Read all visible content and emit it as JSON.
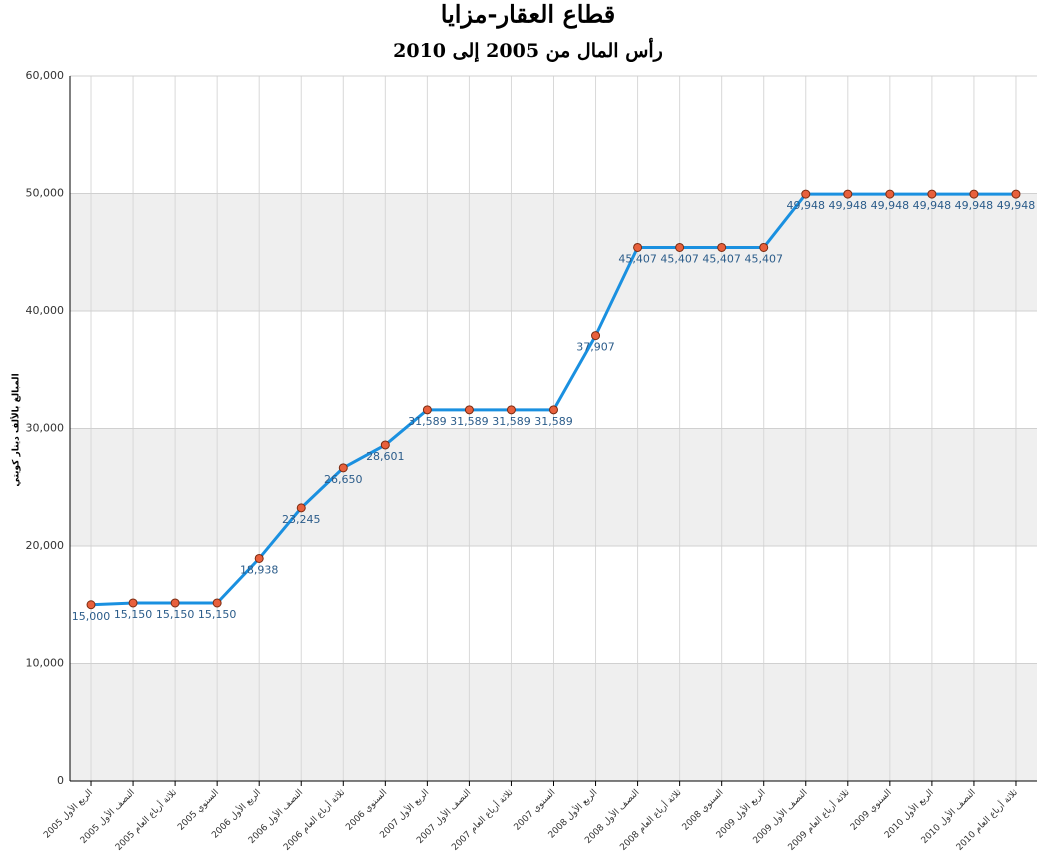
{
  "chart_data": {
    "type": "line",
    "title": "قطاع العقار-مزايا",
    "subtitle": "رأس المال من 2005 إلى 2010",
    "y_label": "المبالغ بالألف دينار كويتي",
    "categories": [
      "الربع الأول 2005",
      "النصف الأول 2005",
      "ثلاثة أرباع العام 2005",
      "السنوي 2005",
      "الربع الأول 2006",
      "النصف الأول 2006",
      "ثلاثة أرباع العام 2006",
      "السنوي 2006",
      "الربع الأول 2007",
      "النصف الأول 2007",
      "ثلاثة أرباع العام 2007",
      "السنوي 2007",
      "الربع الأول 2008",
      "النصف الأول 2008",
      "ثلاثة أرباع العام 2008",
      "السنوي 2008",
      "الربع الأول 2009",
      "النصف الأول 2009",
      "ثلاثة أرباع العام 2009",
      "السنوي 2009",
      "الربع الأول 2010",
      "النصف الأول 2010",
      "ثلاثة أرباع العام 2010"
    ],
    "series": [
      {
        "color": "#1a90e0",
        "marker_color": "#e8603c",
        "values": [
          15000,
          15150,
          15150,
          15150,
          18938,
          23245,
          26650,
          28601,
          31589,
          31589,
          31589,
          31589,
          37907,
          45407,
          45407,
          45407,
          45407,
          49948,
          49948,
          49948,
          49948,
          49948,
          49948
        ],
        "value_labels": [
          "15,000",
          "15,150",
          "15,150",
          "15,150",
          "18,938",
          "23,245",
          "26,650",
          "28,601",
          "31,589",
          "31,589",
          "31,589",
          "31,589",
          "37,907",
          "45,407",
          "45,407",
          "45,407",
          "45,407",
          "49,948",
          "49,948",
          "49,948",
          "49,948",
          "49,948",
          "49,948"
        ]
      }
    ],
    "ylim": [
      0,
      60000
    ],
    "yticks": [
      {
        "value": 0,
        "label": "0"
      },
      {
        "value": 10000,
        "label": "10,000"
      },
      {
        "value": 20000,
        "label": "20,000"
      },
      {
        "value": 30000,
        "label": "30,000"
      },
      {
        "value": 40000,
        "label": "40,000"
      },
      {
        "value": 50000,
        "label": "50,000"
      },
      {
        "value": 60000,
        "label": "60,000"
      }
    ],
    "grid": true
  }
}
